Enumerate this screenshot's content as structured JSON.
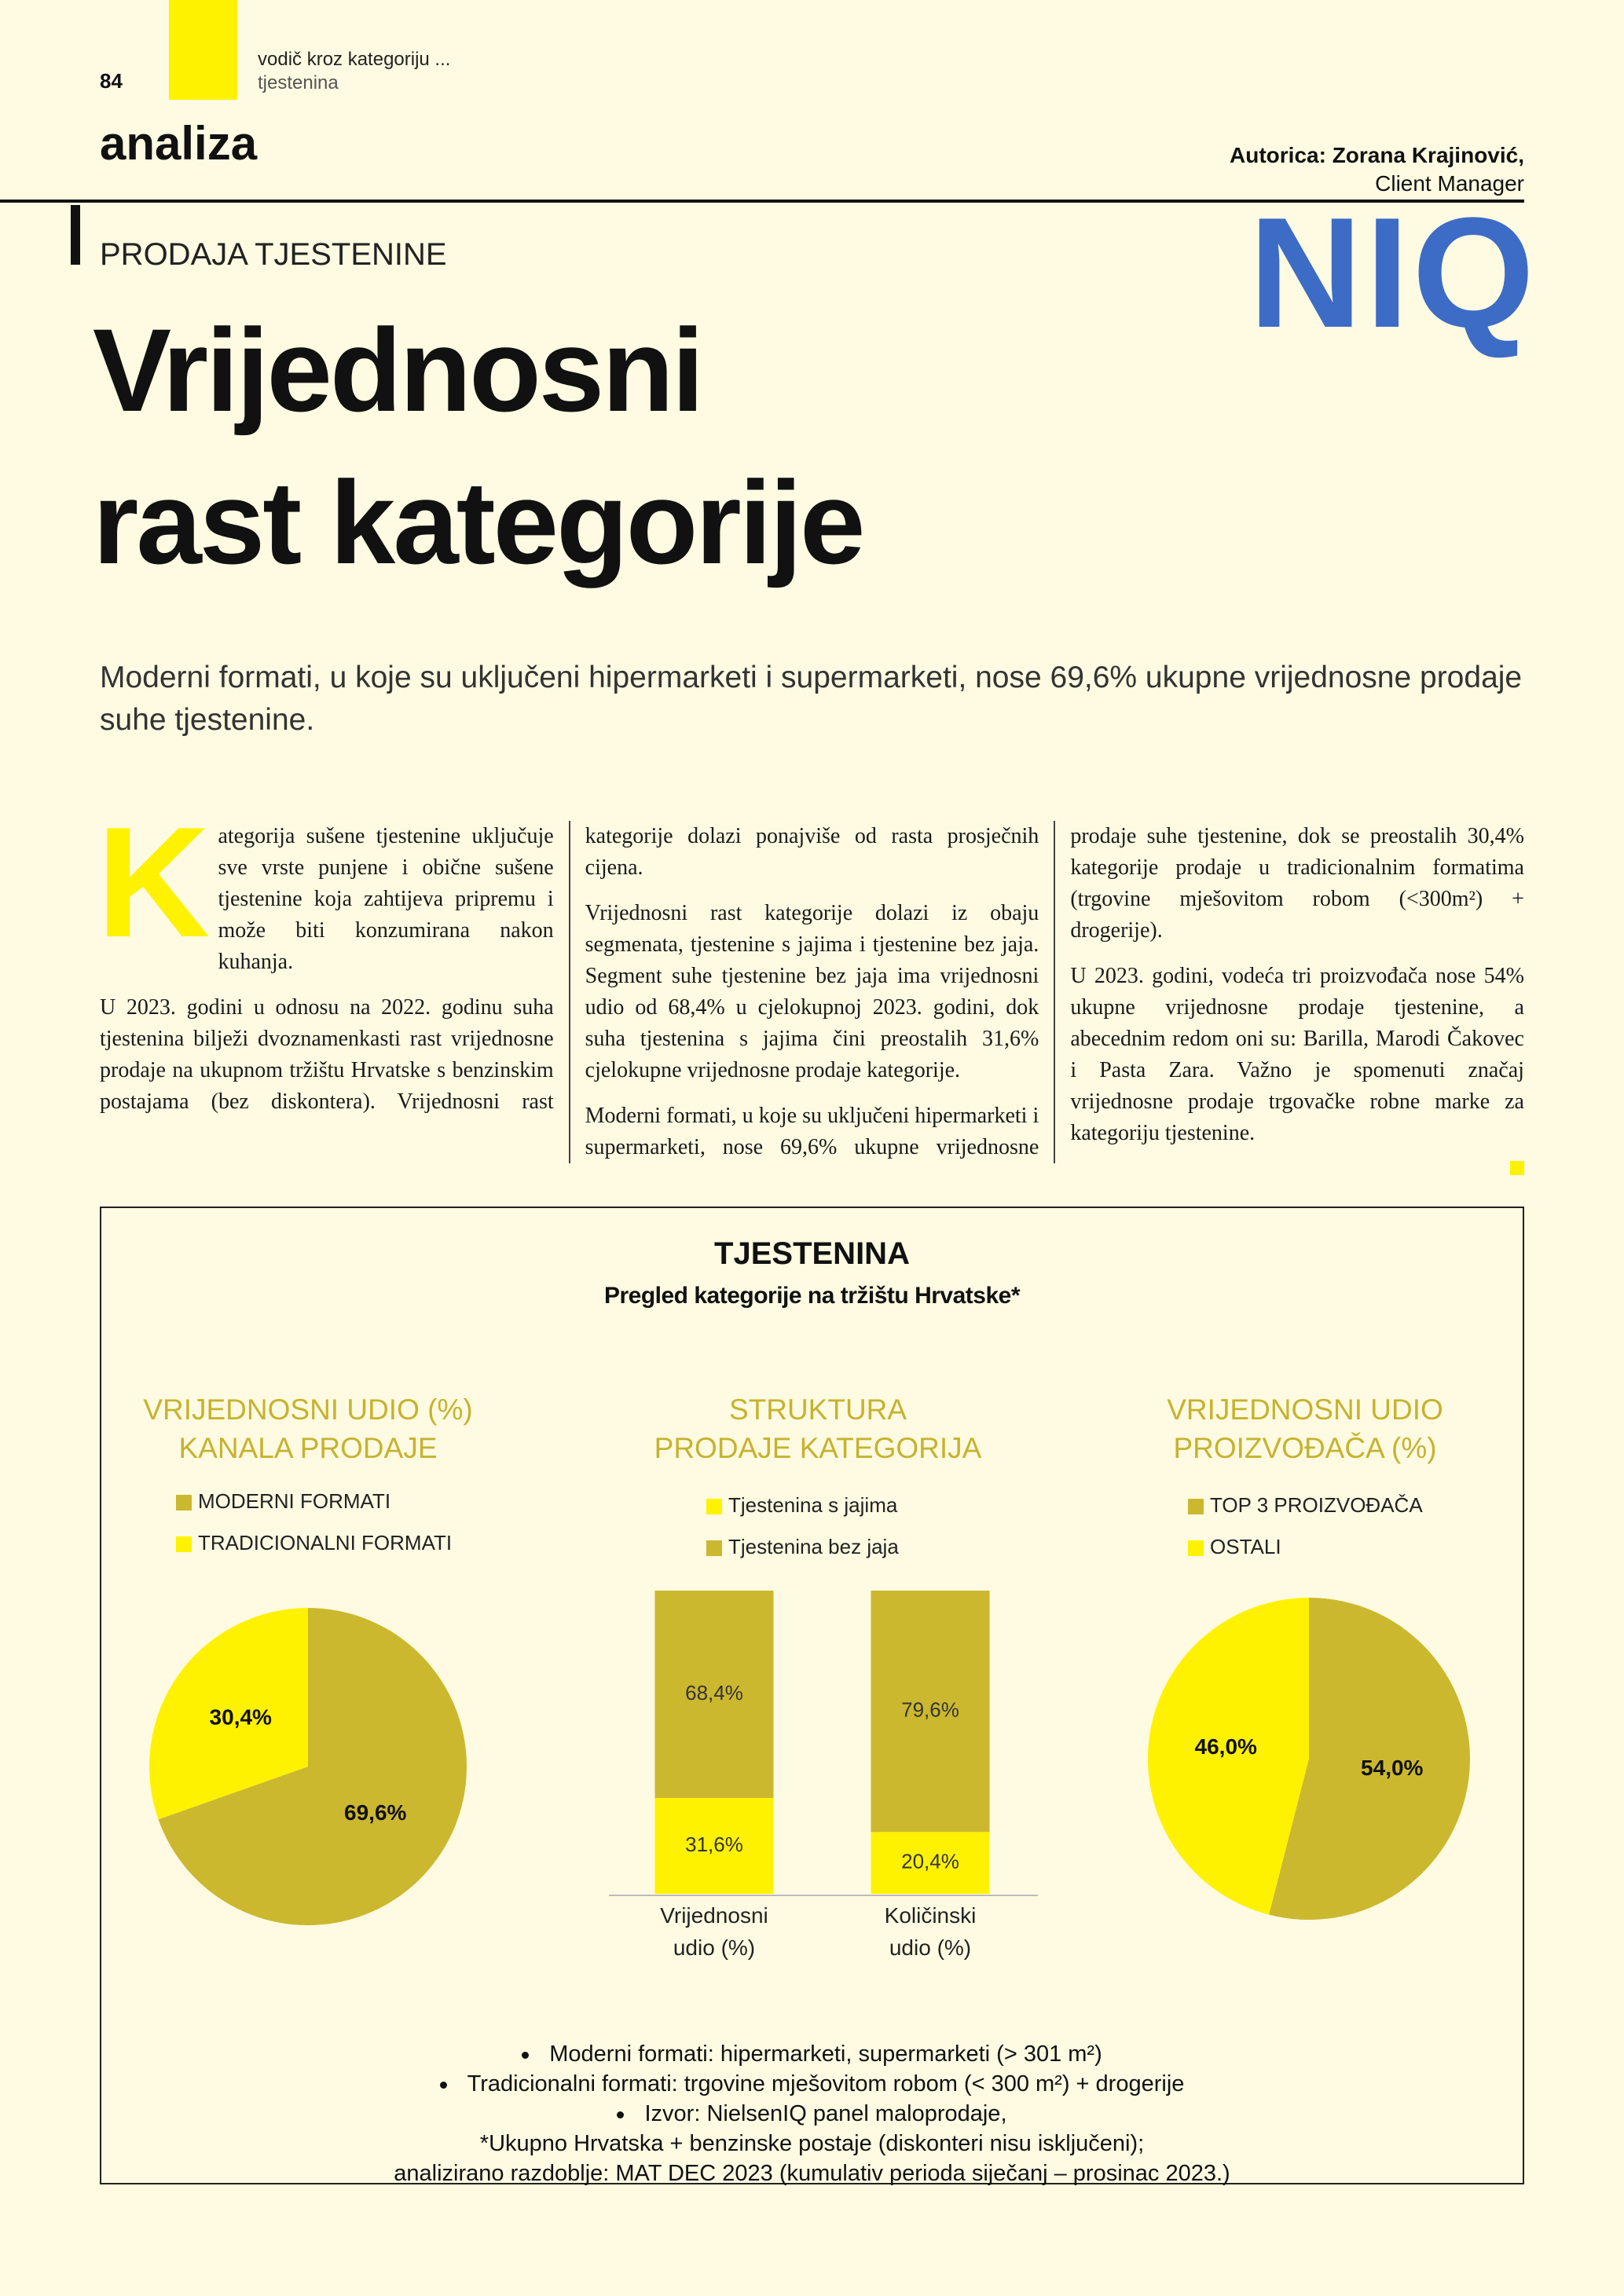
{
  "header": {
    "page_number": "84",
    "section": "vodič kroz kategoriju ...",
    "subsection": "tjestenina",
    "category": "analiza",
    "author": "Autorica: Zorana Krajinović,",
    "author_role": "Client Manager",
    "logo": "NIQ"
  },
  "article": {
    "kicker": "PRODAJA TJESTENINE",
    "title": [
      "Vrijednosni",
      "rast kategorije"
    ],
    "lead": "Moderni formati, u koje su uključeni hipermarketi i supermarketi, nose 69,6% ukupne vrijednosne prodaje suhe tjestenine.",
    "drop_cap": "K",
    "paragraphs": [
      "ategorija sušene tjestenine uključuje sve vrste punjene i obične sušene tjestenine koja zahtijeva pripremu i može biti konzumirana nakon kuhanja.",
      "U 2023. godini u odnosu na 2022. godinu suha tjestenina bilježi dvoznamenkasti rast vrijednosne prodaje na ukupnom tržištu Hrvatske s benzinskim postajama (bez diskontera). Vrijednosni rast kategorije dolazi ponajviše od rasta prosječnih cijena.",
      "Vrijednosni rast kategorije dolazi iz obaju segmenata, tjestenine s jajima i tjestenine bez jaja. Segment suhe tjestenine bez jaja ima vrijednosni udio od 68,4% u cjelokupnoj 2023. godini, dok suha tjestenina s jajima čini preostalih 31,6% cjelokupne vrijednosne prodaje kategorije.",
      "Moderni formati, u koje su uključeni hipermarketi i supermarketi, nose 69,6% ukupne vrijednosne prodaje suhe tjestenine, dok se preostalih 30,4% kategorije prodaje u tradicionalnim formatima (trgovine mješovitom robom (<300m²) + drogerije).",
      "U 2023. godini, vodeća tri proizvođača nose 54% ukupne vrijednosne prodaje tjestenine, a abecednim redom oni su: Barilla, Marodi Čakovec i Pasta Zara. Važno je spomenuti značaj vrijednosne prodaje trgovačke robne marke za kategoriju tjestenine."
    ]
  },
  "figure": {
    "title": "TJESTENINA",
    "subtitle": "Pregled kategorije na tržištu Hrvatske*",
    "footnotes": [
      "Moderni formati: hipermarketi, supermarketi (> 301 m²)",
      "Tradicionalni formati: trgovine mješovitom robom (< 300 m²) + drogerije",
      "Izvor: NielsenIQ panel maloprodaje,",
      "*Ukupno Hrvatska + benzinske postaje (diskonteri nisu isključeni);",
      "analizirano razdoblje: MAT DEC 2023 (kumulativ perioda siječanj – prosinac 2023.)"
    ]
  },
  "chart_data": [
    {
      "type": "pie",
      "title": [
        "VRIJEDNOSNI UDIO (%)",
        "KANALA PRODAJE"
      ],
      "categories": [
        "MODERNI FORMATI",
        "TRADICIONALNI FORMATI"
      ],
      "values": [
        69.6,
        30.4
      ],
      "value_labels": [
        "69,6%",
        "30,4%"
      ],
      "colors": [
        "#ccb82e",
        "#fff200"
      ]
    },
    {
      "type": "bar",
      "stacked": true,
      "title": [
        "STRUKTURA",
        "PRODAJE KATEGORIJA"
      ],
      "categories": [
        "Vrijednosni udio (%)",
        "Količinski udio (%)"
      ],
      "ylim": [
        0,
        100
      ],
      "series": [
        {
          "name": "Tjestenina s jajima",
          "color": "#fff200",
          "values": [
            31.6,
            20.4
          ],
          "value_labels": [
            "31,6%",
            "20,4%"
          ]
        },
        {
          "name": "Tjestenina bez jaja",
          "color": "#ccb82e",
          "values": [
            68.4,
            79.6
          ],
          "value_labels": [
            "68,4%",
            "79,6%"
          ]
        }
      ]
    },
    {
      "type": "pie",
      "title": [
        "VRIJEDNOSNI UDIO",
        "PROIZVOĐAČA (%)"
      ],
      "categories": [
        "TOP 3 PROIZVOĐAČA",
        "OSTALI"
      ],
      "values": [
        54.0,
        46.0
      ],
      "value_labels": [
        "54,0%",
        "46,0%"
      ],
      "colors": [
        "#ccb82e",
        "#fff200"
      ]
    }
  ]
}
